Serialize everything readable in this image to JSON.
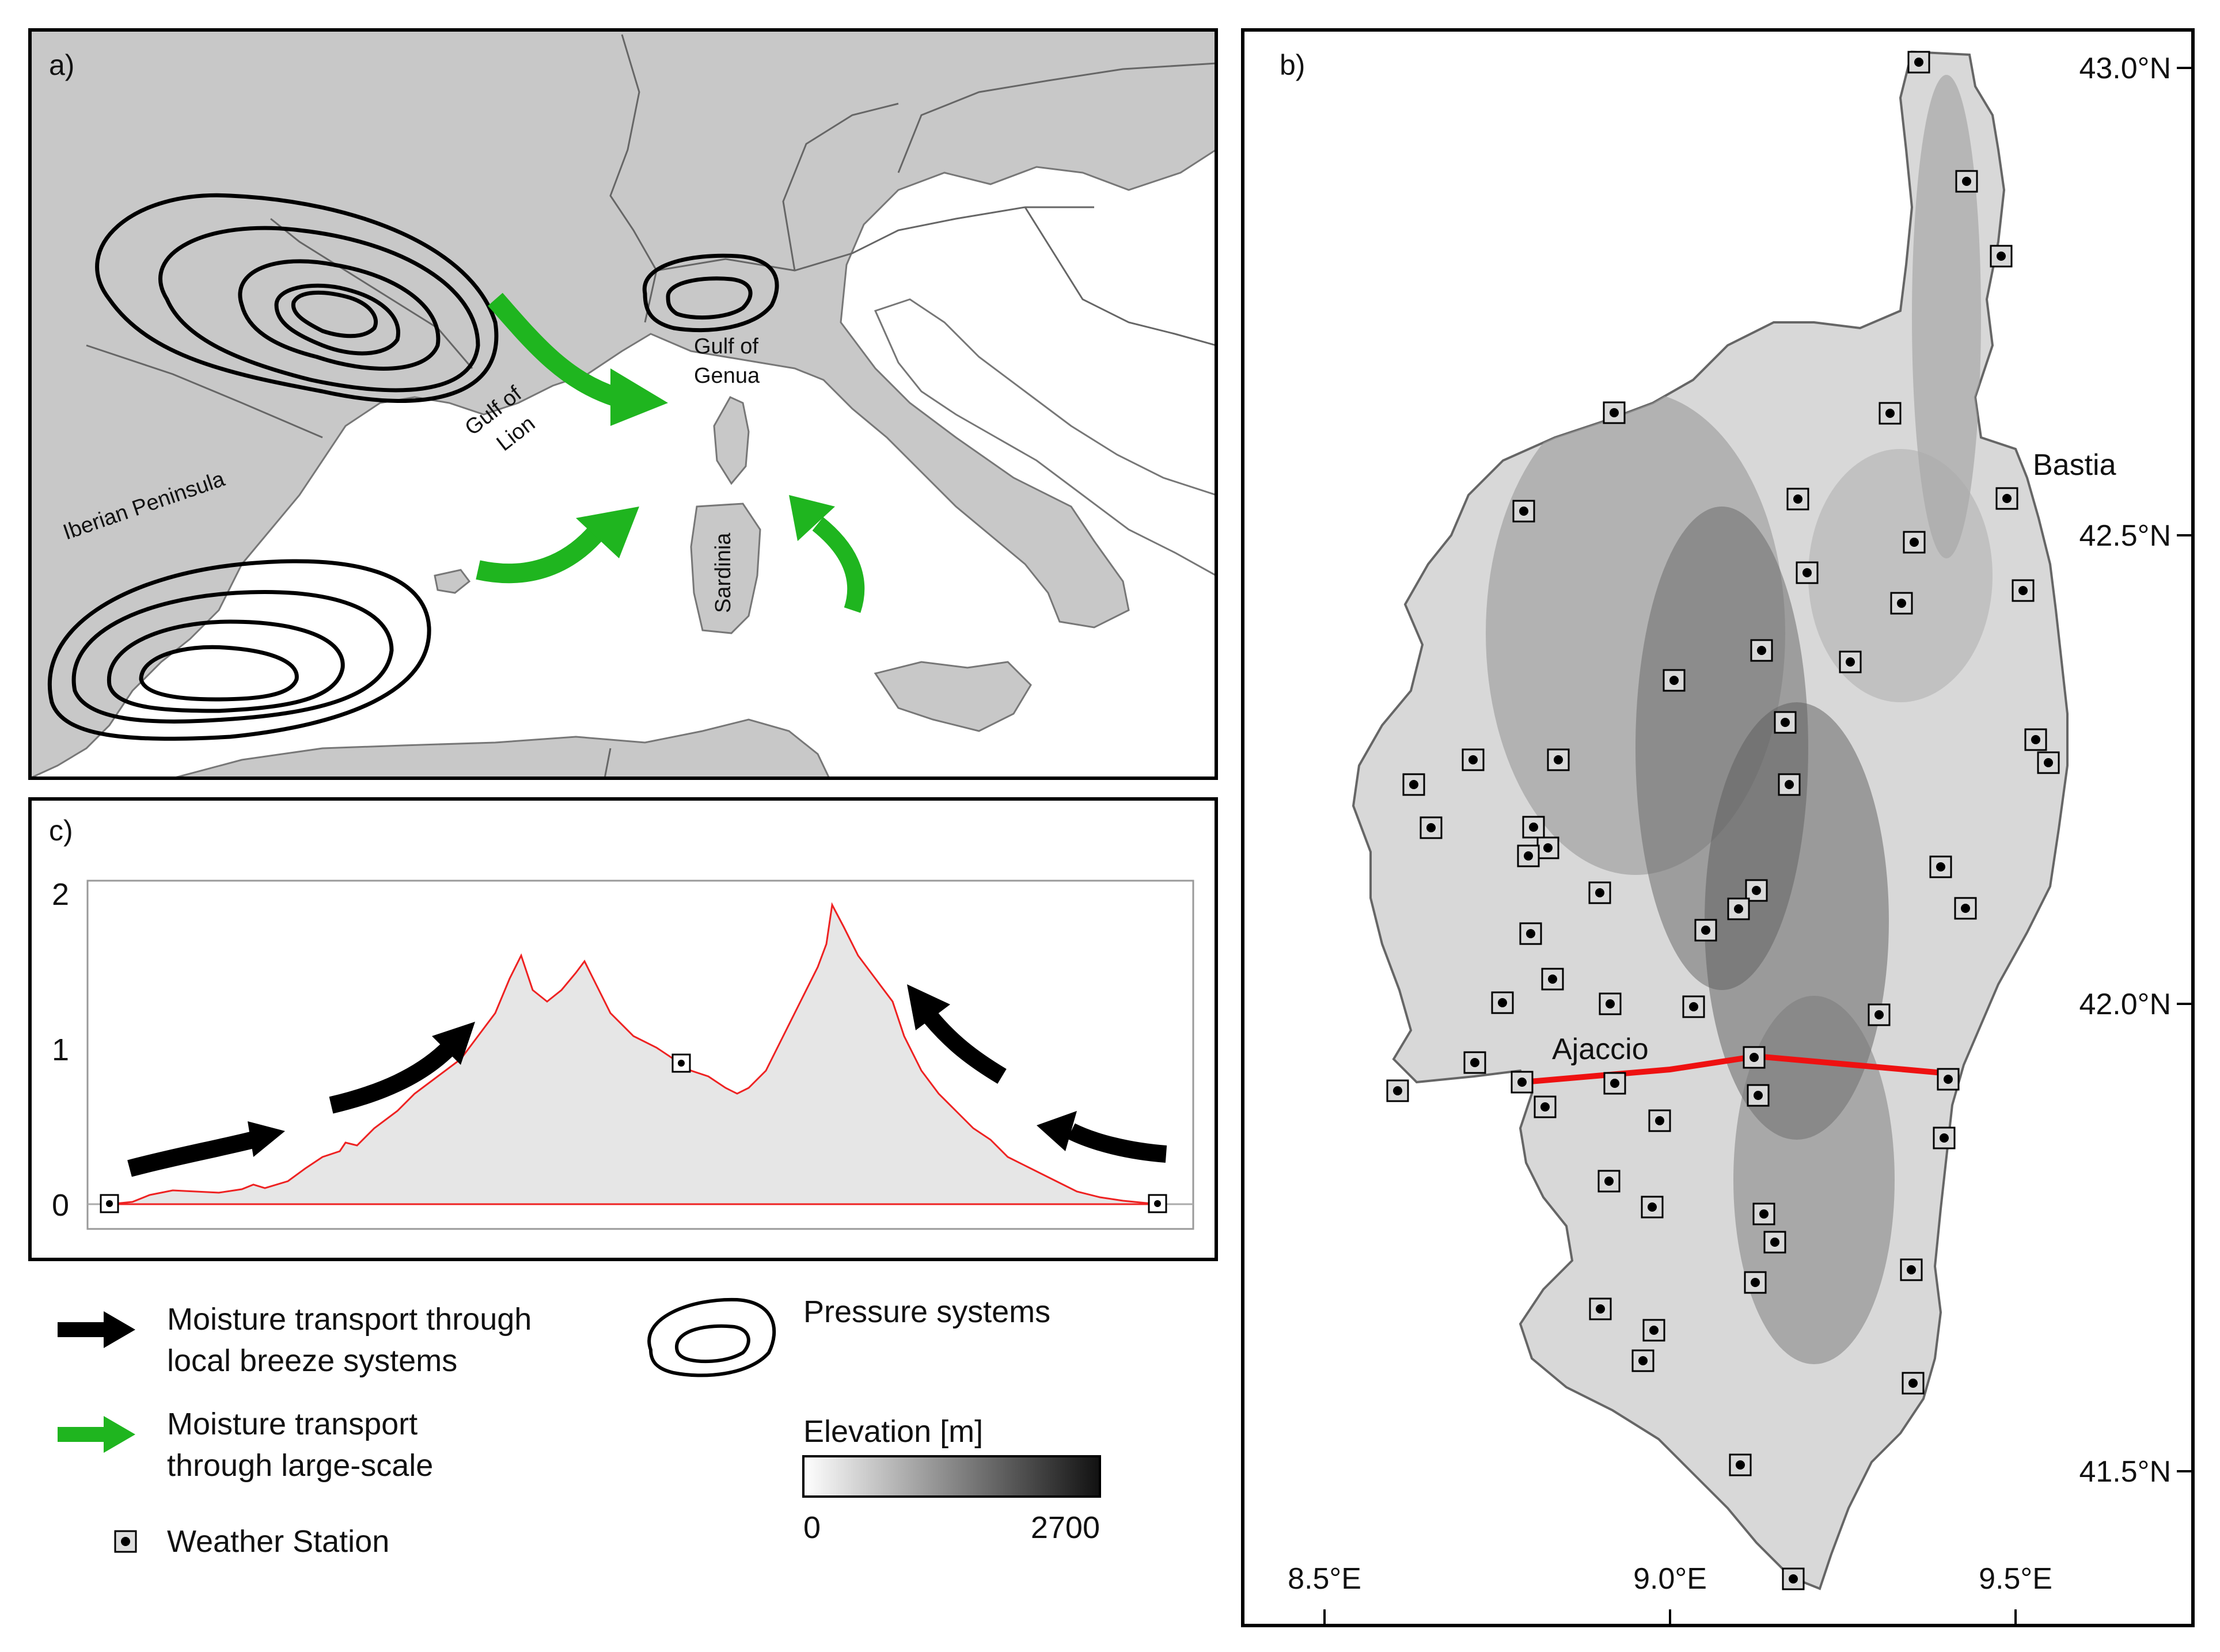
{
  "panels": {
    "a": {
      "label": "a)",
      "places": {
        "iberian": "Iberian Peninsula",
        "gulf_lion_1": "Gulf of",
        "gulf_lion_2": "Lion",
        "gulf_genua_1": "Gulf of",
        "gulf_genua_2": "Genua",
        "sardinia": "Sardinia"
      }
    },
    "b": {
      "label": "b)",
      "cities": {
        "bastia": "Bastia",
        "ajaccio": "Ajaccio"
      },
      "lat_ticks": [
        "43.0°N",
        "42.5°N",
        "42.0°N",
        "41.5°N"
      ],
      "lon_ticks": [
        "8.5°E",
        "9.0°E",
        "9.5°E"
      ]
    },
    "c": {
      "label": "c)",
      "y_ticks": [
        "0",
        "1",
        "2"
      ]
    }
  },
  "legend": {
    "black_arrow_line1": "Moisture transport through",
    "black_arrow_line2": "local breeze systems",
    "green_arrow_line1": "Moisture transport",
    "green_arrow_line2": "through large-scale",
    "station": "Weather Station",
    "pressure": "Pressure systems",
    "elevation_title": "Elevation [m]",
    "elevation_min": "0",
    "elevation_max": "2700"
  },
  "colors": {
    "land": "#c8c8c8",
    "moisture_large_scale": "#1fb51f",
    "moisture_local": "#000000",
    "transect": "#ee1111",
    "profile_line": "#ee2222",
    "profile_fill": "#e6e6e6"
  }
}
